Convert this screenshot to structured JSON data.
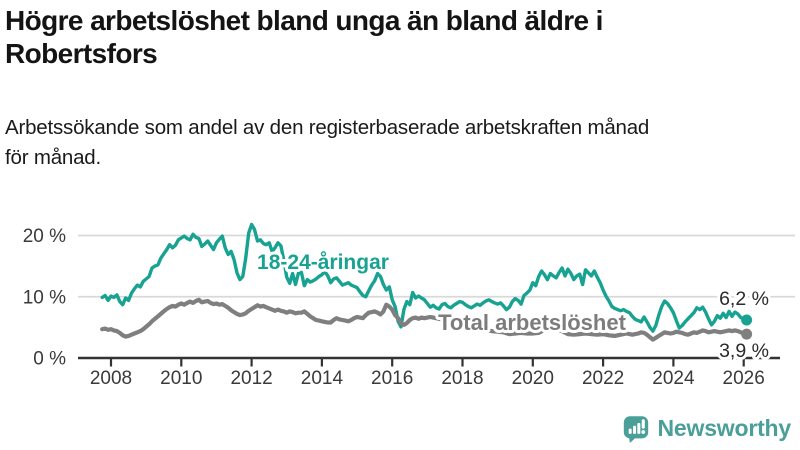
{
  "header": {
    "title_line1": "Högre arbetslöshet bland unga än bland äldre i",
    "title_line2": "Robertsfors",
    "subtitle_line1": "Arbetssökande som andel av den registerbaserade arbetskraften månad",
    "subtitle_line2": "för månad."
  },
  "footer": {
    "brand": "Newsworthy",
    "logo_icon": "bar-chart-speech-bubble",
    "brand_color": "#4a9f99"
  },
  "chart_data": {
    "type": "line",
    "title": "Högre arbetslöshet bland unga än bland äldre i Robertsfors",
    "subtitle": "Arbetssökande som andel av den registerbaserade arbetskraften månad för månad.",
    "x_start": 2007.75,
    "x_step": 0.0833333,
    "xlim": [
      2007.6,
      2026.6
    ],
    "ylim": [
      0,
      22.5
    ],
    "grid": "horizontal",
    "x_ticks": [
      2008,
      2010,
      2012,
      2014,
      2016,
      2018,
      2020,
      2022,
      2024,
      2026
    ],
    "x_tick_labels": [
      "2008",
      "2010",
      "2012",
      "2014",
      "2016",
      "2018",
      "2020",
      "2022",
      "2024",
      "2026"
    ],
    "y_ticks": [
      0,
      10,
      20
    ],
    "y_tick_labels": [
      "0 %",
      "10 %",
      "20 %"
    ],
    "axis_color": "#333333",
    "grid_color": "#d9d9d9",
    "value_label_color": "#2b2b2b",
    "series": [
      {
        "name": "18-24-åringar",
        "color": "#18a292",
        "end_label": "6,2 %",
        "end_value": 6.2,
        "values": [
          9.9,
          10.2,
          9.4,
          10.1,
          9.9,
          10.3,
          9.2,
          8.7,
          9.8,
          9.4,
          10.6,
          11.3,
          11.9,
          11.6,
          12.5,
          12.9,
          13.3,
          14.7,
          15.0,
          15.2,
          16.3,
          17.0,
          17.7,
          18.5,
          18.0,
          18.4,
          19.3,
          19.6,
          19.9,
          19.5,
          19.3,
          20.2,
          19.7,
          19.5,
          18.2,
          18.6,
          19.1,
          18.4,
          17.7,
          18.8,
          19.4,
          19.9,
          18.0,
          16.9,
          17.4,
          16.1,
          13.9,
          12.8,
          13.3,
          16.3,
          20.4,
          21.8,
          21.0,
          19.1,
          19.3,
          18.7,
          18.5,
          18.8,
          17.4,
          18.0,
          18.8,
          18.3,
          16.0,
          13.2,
          12.2,
          13.8,
          12.0,
          13.9,
          14.0,
          11.8,
          12.8,
          12.4,
          12.6,
          12.9,
          13.3,
          13.6,
          14.1,
          13.4,
          12.3,
          12.9,
          13.1,
          12.5,
          11.9,
          12.1,
          12.3,
          11.9,
          11.7,
          11.5,
          10.8,
          10.2,
          10.0,
          11.0,
          11.9,
          12.6,
          13.8,
          13.3,
          12.0,
          11.1,
          11.6,
          9.5,
          8.4,
          6.0,
          5.1,
          7.9,
          9.2,
          8.7,
          10.7,
          9.8,
          10.1,
          9.8,
          9.5,
          8.9,
          8.3,
          8.6,
          8.2,
          8.0,
          8.7,
          8.9,
          8.4,
          8.2,
          8.6,
          8.9,
          9.2,
          9.1,
          8.7,
          8.4,
          8.2,
          8.5,
          8.8,
          8.6,
          9.0,
          9.3,
          9.5,
          9.2,
          9.0,
          8.8,
          9.0,
          8.5,
          7.9,
          8.3,
          9.2,
          9.7,
          9.4,
          8.8,
          10.2,
          10.6,
          11.1,
          12.3,
          11.8,
          13.3,
          14.2,
          13.6,
          12.8,
          13.8,
          13.4,
          13.1,
          14.0,
          14.7,
          13.4,
          14.5,
          13.8,
          12.8,
          13.4,
          13.7,
          12.0,
          14.4,
          13.9,
          13.4,
          14.2,
          13.2,
          12.3,
          11.1,
          10.1,
          9.3,
          8.4,
          8.1,
          7.9,
          7.7,
          7.9,
          7.6,
          7.4,
          6.8,
          6.3,
          6.1,
          5.9,
          6.7,
          5.9,
          5.0,
          4.4,
          5.3,
          7.0,
          8.4,
          9.3,
          8.9,
          8.2,
          7.4,
          6.1,
          4.9,
          5.3,
          5.9,
          6.4,
          6.9,
          7.4,
          8.2,
          7.9,
          8.3,
          7.5,
          6.4,
          5.4,
          6.0,
          6.9,
          6.5,
          7.3,
          6.6,
          7.6,
          6.8,
          7.5,
          7.2,
          6.6,
          6.4,
          6.2
        ]
      },
      {
        "name": "Total arbetslöshet",
        "color": "#7f7f7f",
        "end_label": "3,9 %",
        "end_value": 3.9,
        "values": [
          4.7,
          4.8,
          4.6,
          4.7,
          4.5,
          4.4,
          4.1,
          3.7,
          3.5,
          3.6,
          3.8,
          4.0,
          4.2,
          4.4,
          4.7,
          5.1,
          5.5,
          6.0,
          6.4,
          6.8,
          7.2,
          7.6,
          8.0,
          8.3,
          8.5,
          8.4,
          8.7,
          8.9,
          8.7,
          9.0,
          9.2,
          9.0,
          9.3,
          9.5,
          9.1,
          9.2,
          9.3,
          9.0,
          8.8,
          8.9,
          8.7,
          8.8,
          8.5,
          8.2,
          7.8,
          7.5,
          7.2,
          7.0,
          7.1,
          7.3,
          7.7,
          8.0,
          8.3,
          8.6,
          8.4,
          8.5,
          8.3,
          8.1,
          7.9,
          7.7,
          7.9,
          7.7,
          7.6,
          7.4,
          7.6,
          7.5,
          7.3,
          7.4,
          7.4,
          7.6,
          7.2,
          6.8,
          6.5,
          6.2,
          6.1,
          6.0,
          5.9,
          5.8,
          5.8,
          6.2,
          6.5,
          6.3,
          6.2,
          6.1,
          6.0,
          6.2,
          6.5,
          6.7,
          6.6,
          6.5,
          7.0,
          7.4,
          7.5,
          7.6,
          7.4,
          7.1,
          7.6,
          8.7,
          8.4,
          7.9,
          7.0,
          6.5,
          5.7,
          5.4,
          5.7,
          6.2,
          6.5,
          6.6,
          6.4,
          6.6,
          6.5,
          6.6,
          6.7,
          6.6,
          6.5,
          6.4,
          6.3,
          6.1,
          5.9,
          5.7,
          5.6,
          5.5,
          5.3,
          5.2,
          5.1,
          5.0,
          4.9,
          4.8,
          4.75,
          4.7,
          4.6,
          4.5,
          4.45,
          4.4,
          4.35,
          4.3,
          4.25,
          4.2,
          4.05,
          3.9,
          3.95,
          4.0,
          4.05,
          4.1,
          4.05,
          4.0,
          4.0,
          4.0,
          4.05,
          4.1,
          4.35,
          4.6,
          4.75,
          4.9,
          4.8,
          4.7,
          4.55,
          4.4,
          4.15,
          3.9,
          3.85,
          3.8,
          3.85,
          3.9,
          3.95,
          4.0,
          3.95,
          3.9,
          3.85,
          3.8,
          3.85,
          3.9,
          3.8,
          3.7,
          3.65,
          3.6,
          3.7,
          3.8,
          3.9,
          4.0,
          3.9,
          3.8,
          3.9,
          4.0,
          4.2,
          4.1,
          3.8,
          3.4,
          3.0,
          3.3,
          3.6,
          3.9,
          4.2,
          4.1,
          4.0,
          4.1,
          4.3,
          4.2,
          4.1,
          3.9,
          3.8,
          4.0,
          4.2,
          4.1,
          4.3,
          4.5,
          4.4,
          4.2,
          4.3,
          4.4,
          4.3,
          4.2,
          4.3,
          4.4,
          4.5,
          4.4,
          4.5,
          4.4,
          4.2,
          4.0,
          3.9
        ]
      }
    ],
    "legend_position": "inline-labels"
  }
}
